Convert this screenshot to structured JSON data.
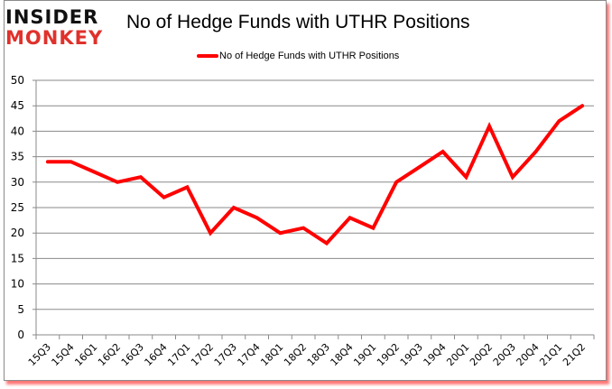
{
  "logo": {
    "line1": "INSIDER",
    "line2": "MONKEY"
  },
  "title": "No of Hedge Funds with UTHR Positions",
  "legend": {
    "label": "No of Hedge Funds with UTHR Positions",
    "color": "#ff0000"
  },
  "colors": {
    "line": "#ff0000",
    "grid": "#8a8a8a",
    "axis": "#8a8a8a",
    "shadow": "#ff0000"
  },
  "chart_data": {
    "type": "line",
    "title": "No of Hedge Funds with UTHR Positions",
    "xlabel": "",
    "ylabel": "",
    "ylim": [
      0,
      50
    ],
    "yticks": [
      0,
      5,
      10,
      15,
      20,
      25,
      30,
      35,
      40,
      45,
      50
    ],
    "grid": true,
    "legend_position": "top",
    "categories": [
      "15Q3",
      "15Q4",
      "16Q1",
      "16Q2",
      "16Q3",
      "16Q4",
      "17Q1",
      "17Q2",
      "17Q3",
      "17Q4",
      "18Q1",
      "18Q2",
      "18Q3",
      "18Q4",
      "19Q1",
      "19Q2",
      "19Q3",
      "19Q4",
      "20Q1",
      "20Q2",
      "20Q3",
      "20Q4",
      "21Q1",
      "21Q2"
    ],
    "series": [
      {
        "name": "No of Hedge Funds with UTHR Positions",
        "values": [
          34,
          34,
          32,
          30,
          31,
          27,
          29,
          20,
          25,
          23,
          20,
          21,
          18,
          23,
          21,
          30,
          33,
          36,
          31,
          41,
          31,
          36,
          42,
          45
        ]
      }
    ]
  }
}
